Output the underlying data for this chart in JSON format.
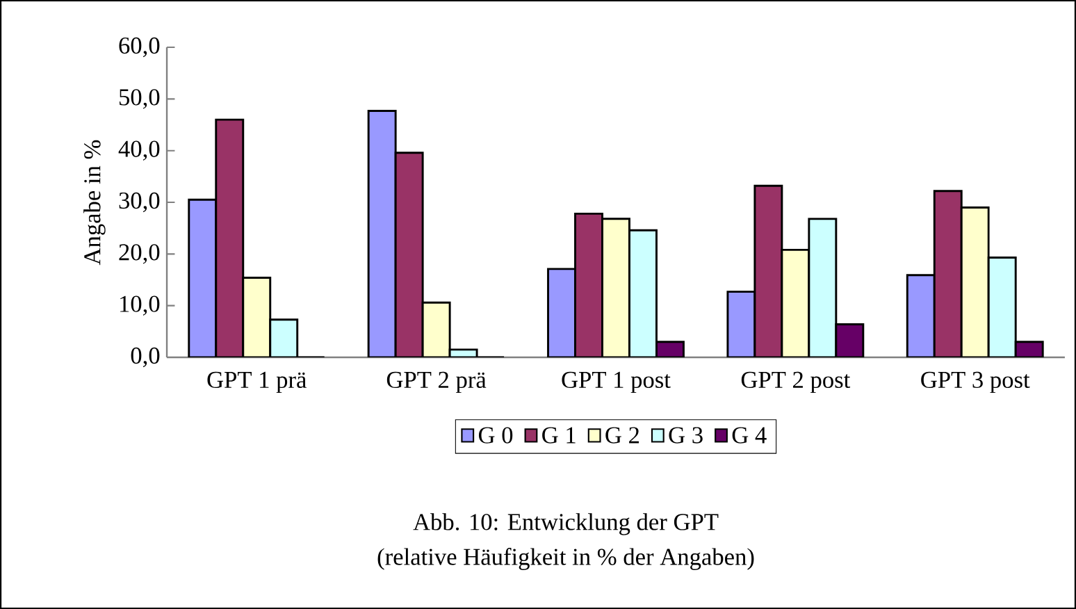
{
  "chart_data": {
    "type": "bar",
    "ylabel": "Angabe in %",
    "categories": [
      "GPT 1 prä",
      "GPT 2 prä",
      "GPT 1 post",
      "GPT 2 post",
      "GPT 3 post"
    ],
    "series": [
      {
        "name": "G 0",
        "color": "#9999ff",
        "values": [
          30.5,
          47.7,
          17.1,
          12.7,
          15.9
        ]
      },
      {
        "name": "G 1",
        "color": "#993366",
        "values": [
          46.0,
          39.6,
          27.8,
          33.2,
          32.2
        ]
      },
      {
        "name": "G 2",
        "color": "#ffffcc",
        "values": [
          15.4,
          10.6,
          26.8,
          20.8,
          29.0
        ]
      },
      {
        "name": "G 3",
        "color": "#ccffff",
        "values": [
          7.3,
          1.5,
          24.6,
          26.8,
          19.3
        ]
      },
      {
        "name": "G 4",
        "color": "#660066",
        "values": [
          0,
          0,
          3.0,
          6.4,
          3.0
        ]
      }
    ],
    "ylim": [
      0,
      60
    ],
    "yticks": [
      {
        "value": 0,
        "label": "0,0"
      },
      {
        "value": 10,
        "label": "10,0"
      },
      {
        "value": 20,
        "label": "20,0"
      },
      {
        "value": 30,
        "label": "30,0"
      },
      {
        "value": 40,
        "label": "40,0"
      },
      {
        "value": 50,
        "label": "50,0"
      },
      {
        "value": 60,
        "label": "60,0"
      }
    ],
    "grid": false,
    "legend": "bottom",
    "annotations": [
      "Abb. 10: Entwicklung der GPT",
      "(relative Häufigkeit in % der Angaben)"
    ]
  }
}
